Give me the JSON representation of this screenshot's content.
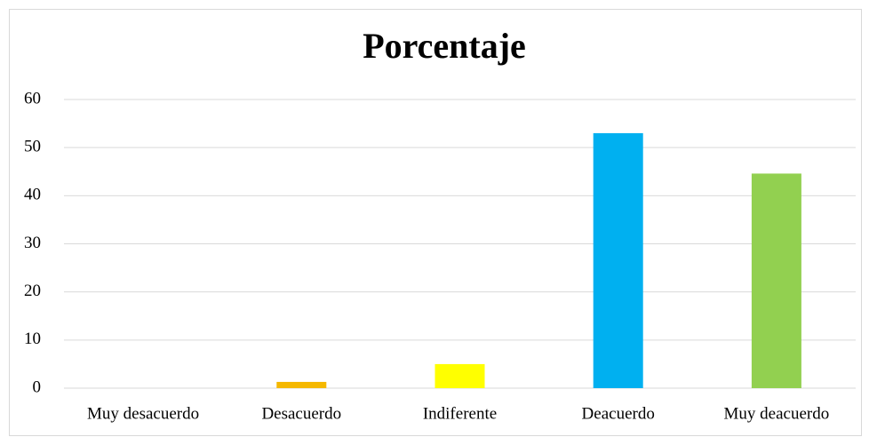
{
  "chart_data": {
    "type": "bar",
    "title": "Porcentaje",
    "categories": [
      "Muy desacuerdo",
      "Desacuerdo",
      "Indiferente",
      "Deacuerdo",
      "Muy deacuerdo"
    ],
    "values": [
      0,
      1.3,
      5.0,
      53.0,
      44.6
    ],
    "colors": [
      "#4472c4",
      "#f5b800",
      "#ffff00",
      "#00b0f0",
      "#92d050"
    ],
    "ylim": [
      0,
      60
    ],
    "yticks": [
      0,
      10,
      20,
      30,
      40,
      50,
      60
    ],
    "grid": true
  }
}
